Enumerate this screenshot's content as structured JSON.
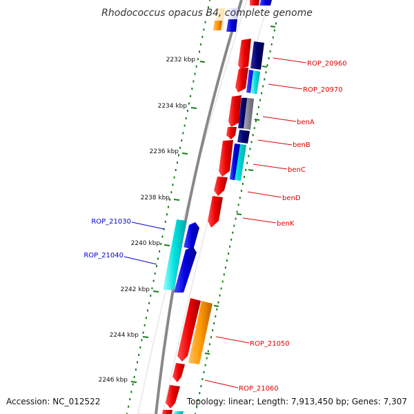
{
  "title": "Rhodococcus opacus B4, complete genome",
  "accession": "Accession: NC_012522",
  "topology": "Topology: linear; Length: 7,913,450 bp; Genes: 7,307",
  "colors": {
    "backbone": "#888888",
    "dots": "#1a7a1a",
    "label_right": "#dd0000",
    "label_left": "#0000cc",
    "gene_red": "#ee0000",
    "gene_blue": "#0000dd",
    "gene_cyan": "#00e0e0",
    "gene_navy": "#000070",
    "gene_gray": "#9090a0",
    "gene_orange": "#ff9900"
  },
  "kbp_ticks": [
    {
      "label": "2232 kbp"
    },
    {
      "label": "2234 kbp"
    },
    {
      "label": "2236 kbp"
    },
    {
      "label": "2238 kbp"
    },
    {
      "label": "2240 kbp"
    },
    {
      "label": "2242 kbp"
    },
    {
      "label": "2244 kbp"
    },
    {
      "label": "2246 kbp"
    }
  ],
  "gene_labels_right": [
    {
      "text": "ROP_20960"
    },
    {
      "text": "ROP_20970"
    },
    {
      "text": "benA"
    },
    {
      "text": "benB"
    },
    {
      "text": "benC"
    },
    {
      "text": "benD"
    },
    {
      "text": "benK"
    },
    {
      "text": "ROP_21050"
    },
    {
      "text": "ROP_21060"
    }
  ],
  "gene_labels_left": [
    {
      "text": "ROP_21030"
    },
    {
      "text": "ROP_21040"
    }
  ]
}
